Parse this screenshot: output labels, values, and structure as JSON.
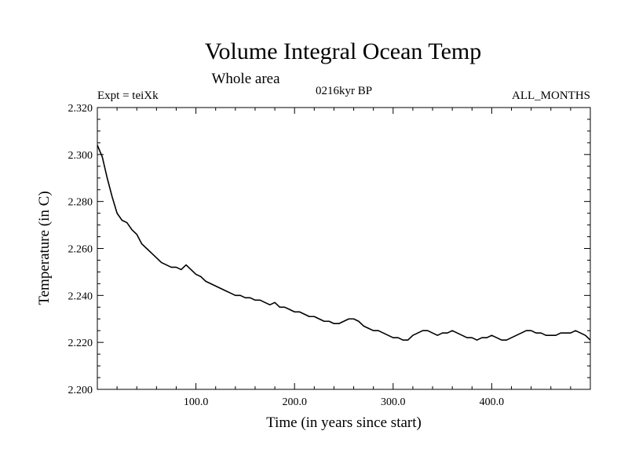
{
  "chart_data": {
    "type": "line",
    "title": "Volume Integral Ocean Temp",
    "subtitle": "Whole area",
    "header_left": "Expt = teiXk",
    "header_center": "0216kyr BP",
    "header_right": "ALL_MONTHS",
    "xlabel": "Time (in years since start)",
    "ylabel": "Temperature (in C)",
    "xlim": [
      0,
      500
    ],
    "ylim": [
      2.2,
      2.32
    ],
    "xticks": [
      {
        "value": 100,
        "label": "100.0"
      },
      {
        "value": 200,
        "label": "200.0"
      },
      {
        "value": 300,
        "label": "300.0"
      },
      {
        "value": 400,
        "label": "400.0"
      }
    ],
    "yticks": [
      {
        "value": 2.2,
        "label": "2.200"
      },
      {
        "value": 2.22,
        "label": "2.220"
      },
      {
        "value": 2.24,
        "label": "2.240"
      },
      {
        "value": 2.26,
        "label": "2.260"
      },
      {
        "value": 2.28,
        "label": "2.280"
      },
      {
        "value": 2.3,
        "label": "2.300"
      },
      {
        "value": 2.32,
        "label": "2.320"
      }
    ],
    "grid": false,
    "series": [
      {
        "color": "#000000",
        "x": [
          0,
          5,
          10,
          15,
          20,
          25,
          30,
          35,
          40,
          45,
          50,
          55,
          60,
          65,
          70,
          75,
          80,
          85,
          90,
          95,
          100,
          105,
          110,
          115,
          120,
          125,
          130,
          135,
          140,
          145,
          150,
          155,
          160,
          165,
          170,
          175,
          180,
          185,
          190,
          195,
          200,
          205,
          210,
          215,
          220,
          225,
          230,
          235,
          240,
          245,
          250,
          255,
          260,
          265,
          270,
          275,
          280,
          285,
          290,
          295,
          300,
          305,
          310,
          315,
          320,
          325,
          330,
          335,
          340,
          345,
          350,
          355,
          360,
          365,
          370,
          375,
          380,
          385,
          390,
          395,
          400,
          405,
          410,
          415,
          420,
          425,
          430,
          435,
          440,
          445,
          450,
          455,
          460,
          465,
          470,
          475,
          480,
          485,
          490,
          495,
          500
        ],
        "values": [
          2.304,
          2.299,
          2.29,
          2.282,
          2.275,
          2.272,
          2.271,
          2.268,
          2.266,
          2.262,
          2.26,
          2.258,
          2.256,
          2.254,
          2.253,
          2.252,
          2.252,
          2.251,
          2.253,
          2.251,
          2.249,
          2.248,
          2.246,
          2.245,
          2.244,
          2.243,
          2.242,
          2.241,
          2.24,
          2.24,
          2.239,
          2.239,
          2.238,
          2.238,
          2.237,
          2.236,
          2.237,
          2.235,
          2.235,
          2.234,
          2.233,
          2.233,
          2.232,
          2.231,
          2.231,
          2.23,
          2.229,
          2.229,
          2.228,
          2.228,
          2.229,
          2.23,
          2.23,
          2.229,
          2.227,
          2.226,
          2.225,
          2.225,
          2.224,
          2.223,
          2.222,
          2.222,
          2.221,
          2.221,
          2.223,
          2.224,
          2.225,
          2.225,
          2.224,
          2.223,
          2.224,
          2.224,
          2.225,
          2.224,
          2.223,
          2.222,
          2.222,
          2.221,
          2.222,
          2.222,
          2.223,
          2.222,
          2.221,
          2.221,
          2.222,
          2.223,
          2.224,
          2.225,
          2.225,
          2.224,
          2.224,
          2.223,
          2.223,
          2.223,
          2.224,
          2.224,
          2.224,
          2.225,
          2.224,
          2.223,
          2.221
        ]
      }
    ]
  }
}
